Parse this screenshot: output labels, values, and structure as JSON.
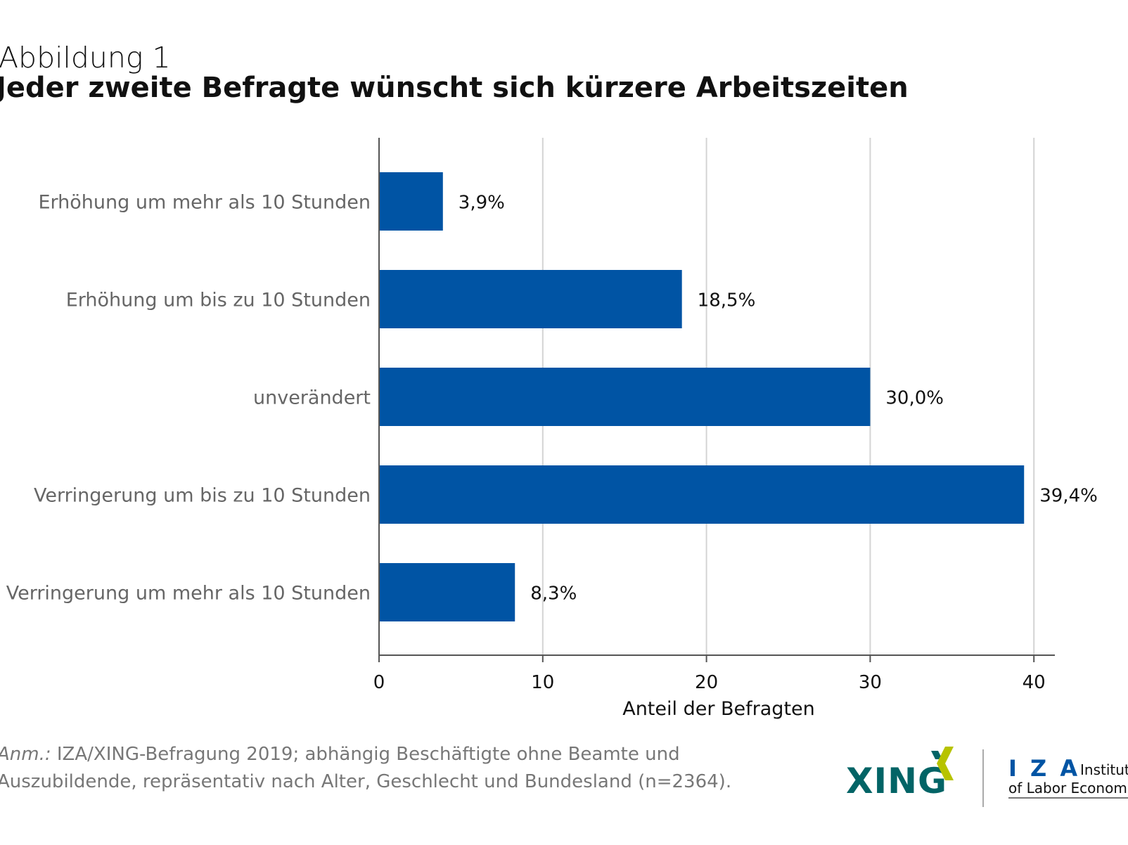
{
  "figure_label": "Abbildung 1",
  "chart_data": {
    "type": "bar",
    "orientation": "horizontal",
    "title": "Jeder zweite Befragte wünscht sich kürzere Arbeitszeiten",
    "categories": [
      "Erhöhung um mehr als 10 Stunden",
      "Erhöhung um bis zu 10 Stunden",
      "unverändert",
      "Verringerung um bis zu 10 Stunden",
      "Verringerung um mehr als 10 Stunden"
    ],
    "values": [
      3.9,
      18.5,
      30.0,
      39.4,
      8.3
    ],
    "data_labels": [
      "3,9%",
      "18,5%",
      "30,0%",
      "39,4%",
      "8,3%"
    ],
    "xlabel": "Anteil der Befragten",
    "ylabel": "",
    "xlim": [
      0,
      41
    ],
    "xticks": [
      0,
      10,
      20,
      30,
      40
    ],
    "xtick_labels": [
      "0",
      "10",
      "20",
      "30",
      "40"
    ],
    "grid": "vertical",
    "bar_color": "#0054a4"
  },
  "note": {
    "prefix": "Anm.:",
    "line1": " IZA/XING-Befragung 2019; abhängig Beschäftigte ohne Beamte und",
    "line2": "Auszubildende, repräsentativ nach Alter, Geschlecht und Bundesland (n=2364)."
  },
  "logos": {
    "xing": "XING",
    "iza": "I Z A",
    "iza_sub1": "Institute",
    "iza_sub2": "of Labor Economics",
    "xing_color": "#026466",
    "xing_accent": "#b7c300",
    "iza_color": "#0054a4"
  }
}
